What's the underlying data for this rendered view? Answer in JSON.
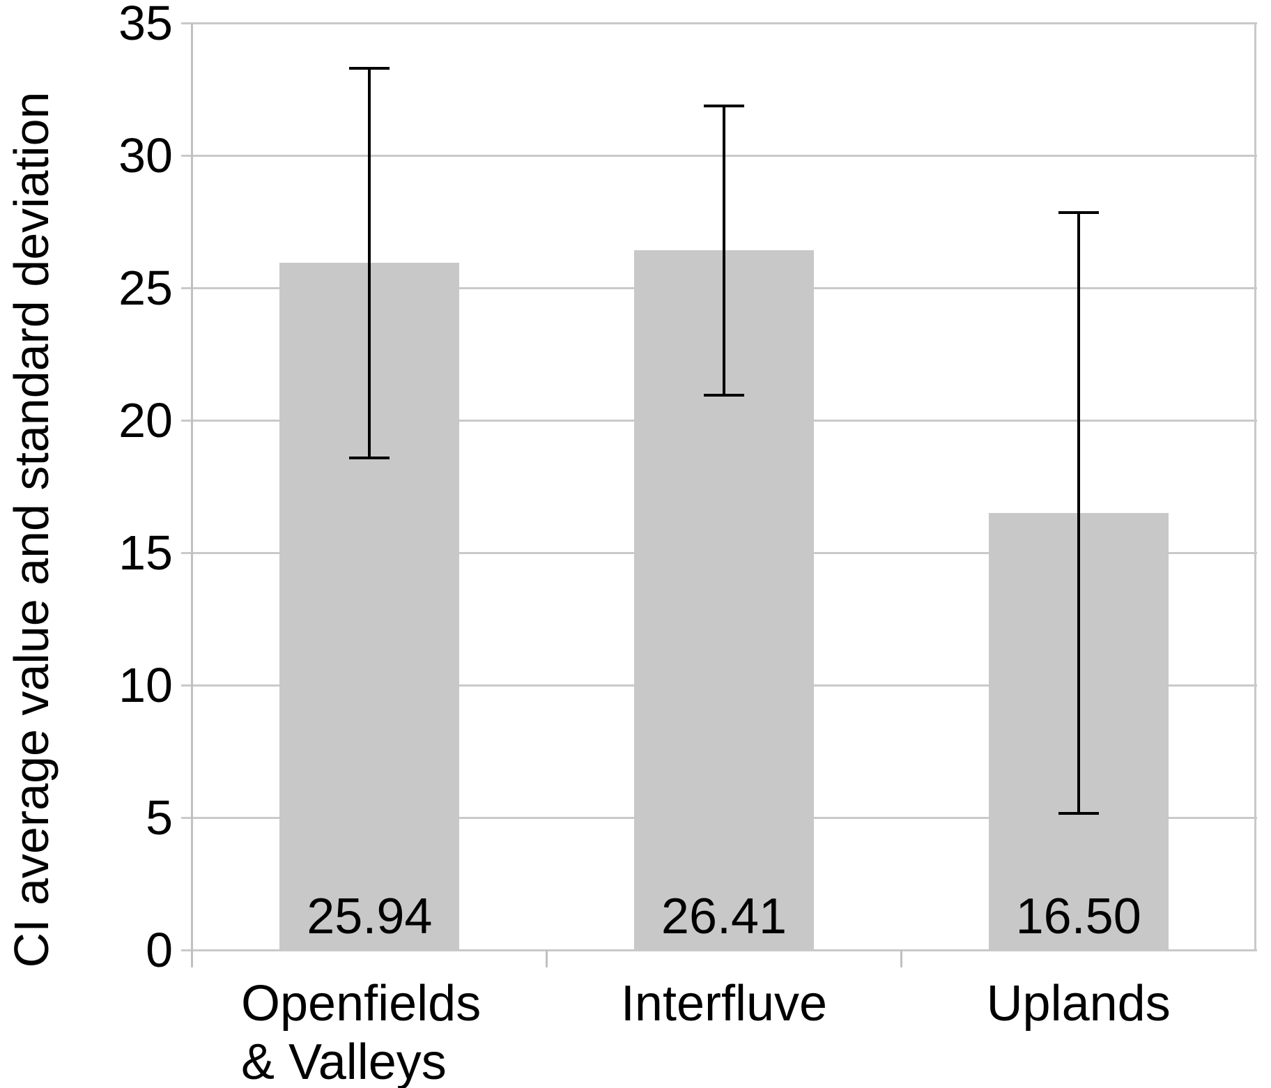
{
  "chart_data": {
    "type": "bar",
    "title": "",
    "xlabel": "",
    "ylabel": "CI average value and standard deviation",
    "ylim": [
      0,
      35
    ],
    "ytick_step": 5,
    "yticks": [
      0,
      5,
      10,
      15,
      20,
      25,
      30,
      35
    ],
    "ytick_labels": [
      "0",
      "5",
      "10",
      "15",
      "20",
      "25",
      "30",
      "35"
    ],
    "grid": true,
    "legend": "none",
    "categories": [
      "Openfields & Valleys",
      "Interfluve",
      "Uplands"
    ],
    "category_lines": [
      [
        "Openfields",
        "& Valleys"
      ],
      [
        "Interfluve"
      ],
      [
        "Uplands"
      ]
    ],
    "values": [
      25.94,
      26.41,
      16.5
    ],
    "value_labels": [
      "25.94",
      "26.41",
      "16.50"
    ],
    "std_dev": [
      7.35,
      5.45,
      11.33
    ],
    "error_high": [
      33.29,
      31.86,
      27.83
    ],
    "error_low": [
      18.59,
      20.96,
      5.17
    ],
    "bar_color": "#c8c8c8",
    "gridline_color": "#c9c9c9",
    "axis_color": "#c0c0c0",
    "error_bar_color": "#000000",
    "text_color": "#000000",
    "background_color": "#ffffff"
  }
}
